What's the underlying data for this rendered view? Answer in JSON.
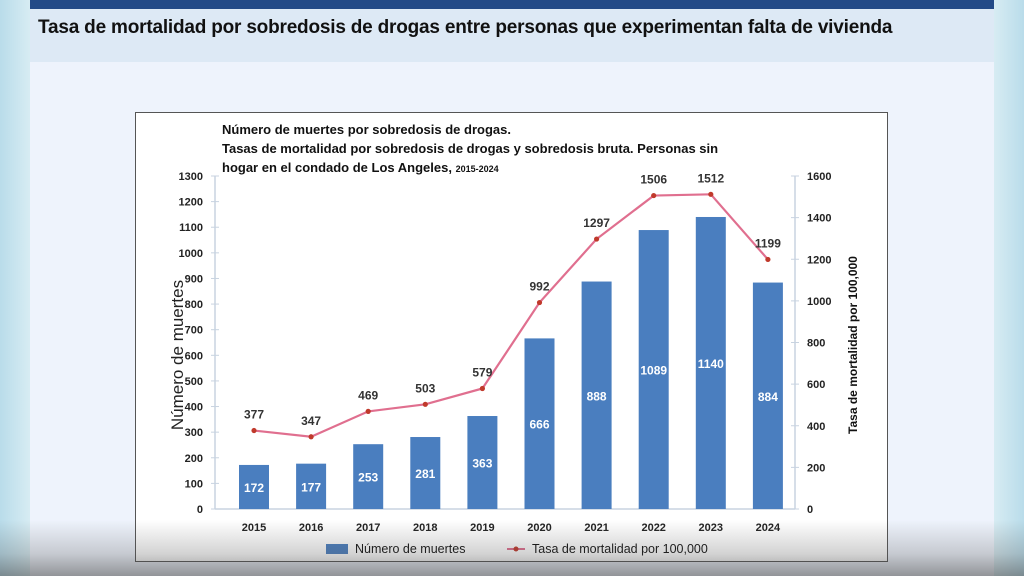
{
  "slide": {
    "title": "Tasa de mortalidad por sobredosis de drogas entre personas que experimentan falta de vivienda"
  },
  "colors": {
    "bar": "#4a7ebf",
    "line": "#e06f8f",
    "marker": "#c0392b",
    "header": "#234a87"
  },
  "chart_data": {
    "type": "bar+line",
    "title_line1": "Número de muertes por sobredosis de drogas.",
    "title_line2": "Tasas de mortalidad por sobredosis de drogas y sobredosis bruta. Personas sin",
    "title_line3": "hogar en el condado de Los Angeles,",
    "title_years": "2015-2024",
    "categories": [
      "2015",
      "2016",
      "2017",
      "2018",
      "2019",
      "2020",
      "2021",
      "2022",
      "2023",
      "2024"
    ],
    "series": [
      {
        "name": "Número de muertes",
        "type": "bar",
        "axis": "left",
        "values": [
          172,
          177,
          253,
          281,
          363,
          666,
          888,
          1089,
          1140,
          884
        ]
      },
      {
        "name": "Tasa de mortalidad por 100,000",
        "type": "line",
        "axis": "right",
        "values": [
          377,
          347,
          469,
          503,
          579,
          992,
          1297,
          1506,
          1512,
          1199
        ]
      }
    ],
    "ylabel_left": "Número de muertes",
    "ylabel_right": "Tasa de mortalidad por 100,000",
    "ylim_left": [
      0,
      1300
    ],
    "yticks_left": [
      0,
      100,
      200,
      300,
      400,
      500,
      600,
      700,
      800,
      900,
      1000,
      1100,
      1200,
      1300
    ],
    "ylim_right": [
      0,
      1600
    ],
    "yticks_right": [
      0,
      200,
      400,
      600,
      800,
      1000,
      1200,
      1400,
      1600
    ],
    "legend": "bottom"
  }
}
